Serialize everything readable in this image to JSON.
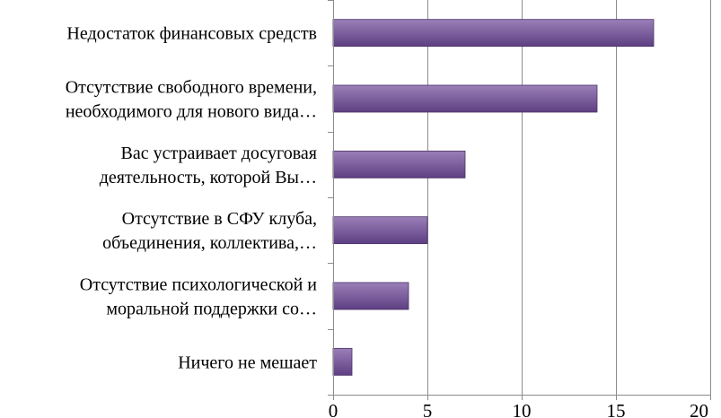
{
  "chart_data": {
    "type": "bar",
    "orientation": "horizontal",
    "categories": [
      [
        "Недостаток финансовых средств"
      ],
      [
        "Отсутствие свободного времени,",
        "необходимого для нового вида…"
      ],
      [
        "Вас устраивает досуговая",
        "деятельность, которой Вы…"
      ],
      [
        "Отсутствие в СФУ клуба,",
        "объединения, коллектива,…"
      ],
      [
        "Отсутствие психологической и",
        "моральной поддержки со…"
      ],
      [
        "Ничего не мешает"
      ]
    ],
    "values": [
      17,
      14,
      7,
      5,
      4,
      1
    ],
    "xlim": [
      0,
      20
    ],
    "xticks": [
      0,
      5,
      10,
      15,
      20
    ],
    "grid": true,
    "legend": "none",
    "title": "",
    "xlabel": "",
    "ylabel": "",
    "colors": {
      "bar_top": "#9a7fb8",
      "bar_bottom": "#5e3f82",
      "bar_edge": "#4a3268",
      "grid": "#8c8c8c",
      "axis": "#8c8c8c"
    }
  }
}
